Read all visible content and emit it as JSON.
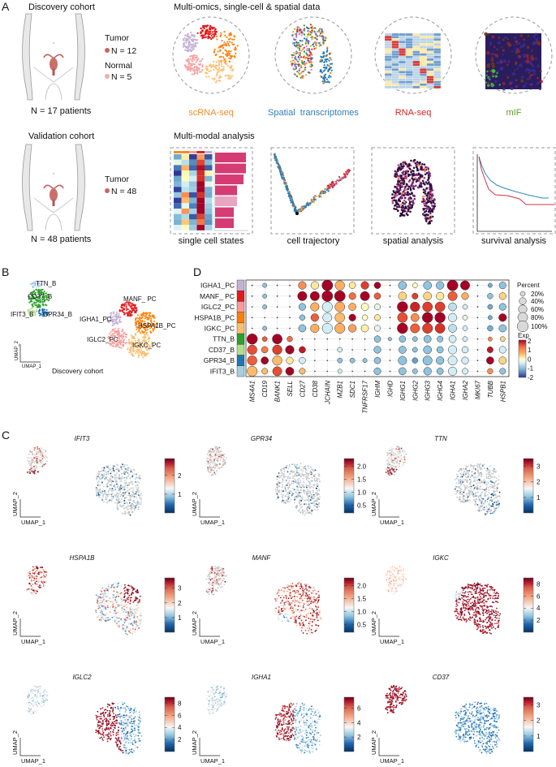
{
  "panel_labels": {
    "A": "A",
    "B": "B",
    "C": "C",
    "D": "D"
  },
  "panel_A": {
    "discovery": {
      "title": "Discovery cohort",
      "groups": [
        {
          "label": "Tumor",
          "n": "N = 12",
          "color": "#c9665f"
        },
        {
          "label": "Normal",
          "n": "N = 5",
          "color": "#eab0ad"
        }
      ],
      "total": "N = 17 patients"
    },
    "validation": {
      "title": "Validation cohort",
      "groups": [
        {
          "label": "Tumor",
          "n": "N = 48",
          "color": "#c9665f"
        }
      ],
      "total": "N = 48 patients"
    },
    "omics": {
      "title": "Multi-omics, single-cell & spatial data",
      "items": [
        {
          "label": "scRNA-seq",
          "color": "#f28e2b"
        },
        {
          "label": "Spatial  transcriptomes",
          "color": "#2f7ebc"
        },
        {
          "label": "RNA-seq",
          "color": "#d62728"
        },
        {
          "label": "mIF",
          "color": "#5aa02c"
        }
      ]
    },
    "analysis": {
      "title": "Multi-modal analysis",
      "items": [
        "single cell states",
        "cell trajectory",
        "spatial analysis",
        "survival analysis"
      ]
    }
  },
  "panel_B": {
    "clusters": [
      {
        "name": "TTN_B",
        "color": "#2ca02c"
      },
      {
        "name": "CD37_B",
        "color": "#a6cde8"
      },
      {
        "name": "IFIT3_B",
        "color": "#b5e08f"
      },
      {
        "name": "GPR34_B",
        "color": "#1f6fb4"
      },
      {
        "name": "MANF_ PC",
        "color": "#e31a1c"
      },
      {
        "name": "IGHA1_PC",
        "color": "#c5b0d5"
      },
      {
        "name": "HSPA1B_PC",
        "color": "#ff7f00"
      },
      {
        "name": "IGLC2_PC",
        "color": "#fb9a99"
      },
      {
        "name": "IGKC_PC",
        "color": "#fdbf6f"
      }
    ],
    "xlabel": "UMAP_1",
    "ylabel": "UMAP_2",
    "caption": "Discovery cohort"
  },
  "chart_data": {
    "type": "heatmap",
    "rows": [
      "IGHA1_PC",
      "MANF_ PC",
      "IGLC2_PC",
      "HSPA1B_PC",
      "IGKC_PC",
      "TTN_B",
      "CD37_B",
      "GPR34_B",
      "IFIT3_B"
    ],
    "row_colors": [
      "#c5b0d5",
      "#e31a1c",
      "#fb9a99",
      "#ff7f00",
      "#fdbf6f",
      "#2ca02c",
      "#b2df8a",
      "#1f78b4",
      "#a6cee3"
    ],
    "genes": [
      "MS4A1",
      "CD19",
      "BANK1",
      "SELL",
      "CD27",
      "CD38",
      "JCHAIN",
      "MZB1",
      "SDC1",
      "TNFRSF17",
      "IGHM",
      "IGHD",
      "IGHG1",
      "IGHG2",
      "IGHG3",
      "IGHG4",
      "IGHA1",
      "IGHA2",
      "MKI67",
      "TUBB",
      "HSPB1"
    ],
    "percent": [
      [
        5,
        15,
        5,
        5,
        50,
        50,
        95,
        75,
        35,
        50,
        35,
        5,
        55,
        20,
        55,
        50,
        95,
        70,
        5,
        15,
        40
      ],
      [
        5,
        15,
        5,
        5,
        70,
        70,
        95,
        95,
        40,
        70,
        35,
        5,
        55,
        30,
        55,
        50,
        70,
        40,
        5,
        25,
        40
      ],
      [
        5,
        15,
        5,
        5,
        40,
        60,
        85,
        80,
        45,
        45,
        30,
        5,
        90,
        75,
        80,
        80,
        55,
        20,
        5,
        20,
        40
      ],
      [
        5,
        5,
        5,
        5,
        25,
        50,
        70,
        80,
        40,
        25,
        30,
        5,
        80,
        55,
        90,
        90,
        60,
        20,
        5,
        15,
        50
      ],
      [
        5,
        15,
        5,
        5,
        45,
        60,
        85,
        85,
        50,
        45,
        30,
        5,
        90,
        70,
        85,
        80,
        55,
        20,
        5,
        25,
        45
      ],
      [
        90,
        20,
        80,
        25,
        5,
        5,
        5,
        5,
        5,
        5,
        35,
        10,
        35,
        20,
        45,
        30,
        45,
        20,
        5,
        15,
        20
      ],
      [
        75,
        35,
        75,
        60,
        35,
        5,
        5,
        20,
        5,
        5,
        40,
        5,
        45,
        20,
        55,
        35,
        60,
        35,
        5,
        30,
        40
      ],
      [
        75,
        45,
        75,
        40,
        35,
        5,
        5,
        20,
        20,
        15,
        35,
        5,
        60,
        25,
        70,
        50,
        70,
        40,
        5,
        45,
        45
      ],
      [
        85,
        30,
        70,
        55,
        30,
        5,
        5,
        15,
        5,
        5,
        40,
        5,
        45,
        20,
        50,
        35,
        60,
        30,
        5,
        25,
        30
      ]
    ],
    "exp": [
      [
        0,
        -1,
        0,
        0,
        1,
        0.3,
        2,
        0.8,
        0.3,
        1.5,
        2,
        0,
        -1,
        0,
        -1,
        -1,
        2,
        2,
        0,
        -1.2,
        -1
      ],
      [
        0,
        -1,
        0,
        0,
        2,
        2,
        2,
        2,
        1.2,
        2,
        1.3,
        0,
        0.5,
        1.5,
        0.5,
        0.3,
        1.3,
        0.8,
        0,
        -1,
        0.5
      ],
      [
        0,
        -1,
        0,
        0,
        -1,
        0.8,
        -0.5,
        0.8,
        0.8,
        0,
        -0.3,
        0,
        2,
        1.7,
        1.5,
        1.5,
        -0.7,
        -0.5,
        0,
        -1.2,
        -1
      ],
      [
        0,
        0,
        0,
        0,
        -1,
        1.3,
        -0.5,
        0.7,
        2,
        0,
        0.3,
        0,
        1.4,
        1,
        2,
        2,
        -0.5,
        -0.3,
        0,
        -1.2,
        2
      ],
      [
        0,
        -1,
        0,
        0,
        -1,
        0.8,
        -0.5,
        0.8,
        0.9,
        0.2,
        -0.3,
        0,
        2,
        1.3,
        1.5,
        1.6,
        -0.7,
        -0.5,
        0,
        -1.2,
        -1
      ],
      [
        2,
        1.3,
        2,
        1.2,
        0,
        0,
        0,
        0,
        0,
        0,
        -1,
        -1,
        -1,
        -1,
        -1,
        -1,
        -0.5,
        -0.5,
        0,
        1,
        0.5
      ],
      [
        1.4,
        1.1,
        1.5,
        2,
        1.8,
        0,
        0,
        -0.5,
        0,
        0,
        -1,
        0,
        -1,
        -1,
        -1,
        -1,
        -0.5,
        -0.5,
        0,
        1.8,
        -0.5
      ],
      [
        1.3,
        2,
        0.7,
        0.3,
        -0.5,
        0,
        0,
        -1,
        -1,
        -1,
        -1,
        0,
        -1,
        -1.3,
        -1,
        -1,
        -0.5,
        -0.5,
        0,
        2,
        0.5
      ],
      [
        0.7,
        0.7,
        1.4,
        2,
        0.7,
        0,
        0,
        -0.5,
        0,
        0,
        -1,
        0,
        -1,
        -1,
        -1,
        -1,
        -0.5,
        -0.5,
        0,
        1,
        -1
      ]
    ],
    "size_legend": {
      "title": "Percent",
      "labels": [
        "20%",
        "40%",
        "60%",
        "80%",
        "100%"
      ],
      "values": [
        20,
        40,
        60,
        80,
        100
      ]
    },
    "color_legend": {
      "title": "Exp",
      "ticks": [
        "2",
        "1",
        "0",
        "-1",
        "-2"
      ],
      "range": [
        -2,
        2
      ]
    },
    "grid": true
  },
  "panel_C": {
    "xlabel": "UMAP_1",
    "ylabel": "UMAP_2",
    "features": [
      {
        "gene": "IFIT3",
        "ticks": [
          "2",
          "1"
        ],
        "tick_values": [
          2,
          1
        ],
        "range": [
          0,
          2.9
        ]
      },
      {
        "gene": "GPR34",
        "ticks": [
          "2.0",
          "1.5",
          "1.0",
          "0.5"
        ],
        "tick_values": [
          2.0,
          1.5,
          1.0,
          0.5
        ],
        "range": [
          0.2,
          2.3
        ]
      },
      {
        "gene": "TTN",
        "ticks": [
          "3",
          "2",
          "1"
        ],
        "tick_values": [
          3,
          2,
          1
        ],
        "range": [
          0,
          3.5
        ]
      },
      {
        "gene": "HSPA1B",
        "ticks": [
          "3",
          "2",
          "1"
        ],
        "tick_values": [
          3,
          2,
          1
        ],
        "range": [
          0,
          3.7
        ]
      },
      {
        "gene": "MANF",
        "ticks": [
          "2.0",
          "1.5",
          "1.0",
          "0.5"
        ],
        "tick_values": [
          2.0,
          1.5,
          1.0,
          0.5
        ],
        "range": [
          0.2,
          2.3
        ]
      },
      {
        "gene": "IGKC",
        "ticks": [
          "8",
          "6",
          "4",
          "2"
        ],
        "tick_values": [
          8,
          6,
          4,
          2
        ],
        "range": [
          0,
          9
        ]
      },
      {
        "gene": "IGLC2",
        "ticks": [
          "8",
          "6",
          "4",
          "2"
        ],
        "tick_values": [
          8,
          6,
          4,
          2
        ],
        "range": [
          0,
          9
        ]
      },
      {
        "gene": "IGHA1",
        "ticks": [
          "6",
          "4",
          "2"
        ],
        "tick_values": [
          6,
          4,
          2
        ],
        "range": [
          0,
          7.5
        ]
      },
      {
        "gene": "CD37",
        "ticks": [
          "3",
          "2",
          "1"
        ],
        "tick_values": [
          3,
          2,
          1
        ],
        "range": [
          0,
          3.5
        ]
      }
    ]
  }
}
